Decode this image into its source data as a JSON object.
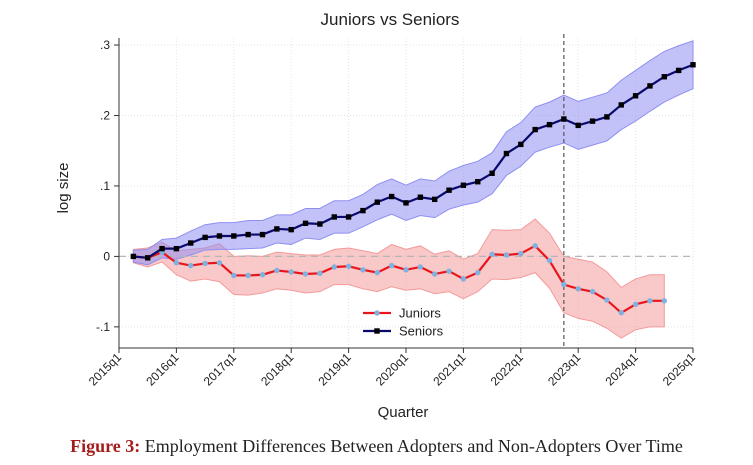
{
  "chart_data": {
    "type": "line",
    "title": "Juniors vs Seniors",
    "xlabel": "Quarter",
    "ylabel": "log size",
    "ylim": [
      -0.13,
      0.31
    ],
    "y_ticks": [
      {
        "value": -0.1,
        "label": "-.1"
      },
      {
        "value": 0,
        "label": "0"
      },
      {
        "value": 0.1,
        "label": ".1"
      },
      {
        "value": 0.2,
        "label": ".2"
      },
      {
        "value": 0.3,
        "label": ".3"
      }
    ],
    "x_ticks": [
      {
        "index": 0,
        "label": "2015q1"
      },
      {
        "index": 4,
        "label": "2016q1"
      },
      {
        "index": 8,
        "label": "2017q1"
      },
      {
        "index": 12,
        "label": "2018q1"
      },
      {
        "index": 16,
        "label": "2019q1"
      },
      {
        "index": 20,
        "label": "2020q1"
      },
      {
        "index": 24,
        "label": "2021q1"
      },
      {
        "index": 28,
        "label": "2022q1"
      },
      {
        "index": 32,
        "label": "2023q1"
      },
      {
        "index": 36,
        "label": "2024q1"
      },
      {
        "index": 40,
        "label": "2025q1"
      }
    ],
    "reference_line_index": 31,
    "grid": true,
    "legend_position": "bottom-center",
    "series": [
      {
        "name": "Juniors",
        "color": "#e8161c",
        "marker_color": "#7fb2e0",
        "band_color": "#f49a9a",
        "start_index": 1,
        "values": [
          0.0,
          -0.002,
          0.006,
          -0.009,
          -0.013,
          -0.01,
          -0.009,
          -0.027,
          -0.027,
          -0.026,
          -0.02,
          -0.022,
          -0.025,
          -0.024,
          -0.015,
          -0.014,
          -0.019,
          -0.023,
          -0.013,
          -0.019,
          -0.015,
          -0.025,
          -0.021,
          -0.032,
          -0.023,
          0.003,
          0.002,
          0.004,
          0.015,
          -0.006,
          -0.04,
          -0.046,
          -0.05,
          -0.062,
          -0.08,
          -0.068,
          -0.063,
          -0.063
        ],
        "lower": [
          -0.009,
          -0.015,
          -0.008,
          -0.026,
          -0.035,
          -0.032,
          -0.036,
          -0.054,
          -0.055,
          -0.052,
          -0.046,
          -0.048,
          -0.052,
          -0.05,
          -0.04,
          -0.04,
          -0.046,
          -0.05,
          -0.043,
          -0.048,
          -0.046,
          -0.053,
          -0.05,
          -0.06,
          -0.05,
          -0.032,
          -0.033,
          -0.03,
          -0.023,
          -0.045,
          -0.08,
          -0.088,
          -0.092,
          -0.102,
          -0.116,
          -0.104,
          -0.1,
          -0.1
        ],
        "upper": [
          0.01,
          0.012,
          0.02,
          0.008,
          0.01,
          0.012,
          0.018,
          0.0,
          0.001,
          0.0,
          0.006,
          0.004,
          0.002,
          0.002,
          0.01,
          0.012,
          0.008,
          0.004,
          0.017,
          0.01,
          0.015,
          0.003,
          0.008,
          -0.004,
          0.004,
          0.038,
          0.037,
          0.038,
          0.053,
          0.033,
          0.0,
          -0.004,
          -0.008,
          -0.022,
          -0.044,
          -0.032,
          -0.026,
          -0.026
        ]
      },
      {
        "name": "Seniors",
        "color": "#0a0a6e",
        "marker_color": "#000000",
        "band_color": "#8f8ff2",
        "start_index": 1,
        "values": [
          0.0,
          -0.002,
          0.011,
          0.011,
          0.019,
          0.027,
          0.029,
          0.029,
          0.031,
          0.031,
          0.039,
          0.038,
          0.047,
          0.046,
          0.056,
          0.056,
          0.065,
          0.077,
          0.085,
          0.076,
          0.084,
          0.081,
          0.094,
          0.101,
          0.106,
          0.118,
          0.146,
          0.159,
          0.18,
          0.187,
          0.195,
          0.186,
          0.192,
          0.198,
          0.215,
          0.228,
          0.242,
          0.255,
          0.264,
          0.272
        ],
        "lower": [
          -0.008,
          -0.012,
          -0.002,
          -0.004,
          0.002,
          0.009,
          0.01,
          0.01,
          0.011,
          0.012,
          0.019,
          0.017,
          0.026,
          0.024,
          0.033,
          0.033,
          0.042,
          0.052,
          0.06,
          0.051,
          0.058,
          0.055,
          0.067,
          0.073,
          0.077,
          0.089,
          0.115,
          0.128,
          0.148,
          0.155,
          0.161,
          0.152,
          0.158,
          0.164,
          0.18,
          0.192,
          0.206,
          0.219,
          0.229,
          0.238
        ],
        "upper": [
          0.009,
          0.01,
          0.024,
          0.026,
          0.036,
          0.045,
          0.048,
          0.048,
          0.051,
          0.051,
          0.059,
          0.059,
          0.068,
          0.068,
          0.079,
          0.079,
          0.088,
          0.102,
          0.11,
          0.101,
          0.11,
          0.107,
          0.121,
          0.129,
          0.135,
          0.147,
          0.177,
          0.19,
          0.212,
          0.219,
          0.229,
          0.22,
          0.226,
          0.232,
          0.25,
          0.264,
          0.278,
          0.291,
          0.299,
          0.306
        ]
      }
    ]
  },
  "caption": {
    "label": "Figure 3:",
    "text": "Employment Differences Between Adopters and Non-Adopters Over Time"
  }
}
